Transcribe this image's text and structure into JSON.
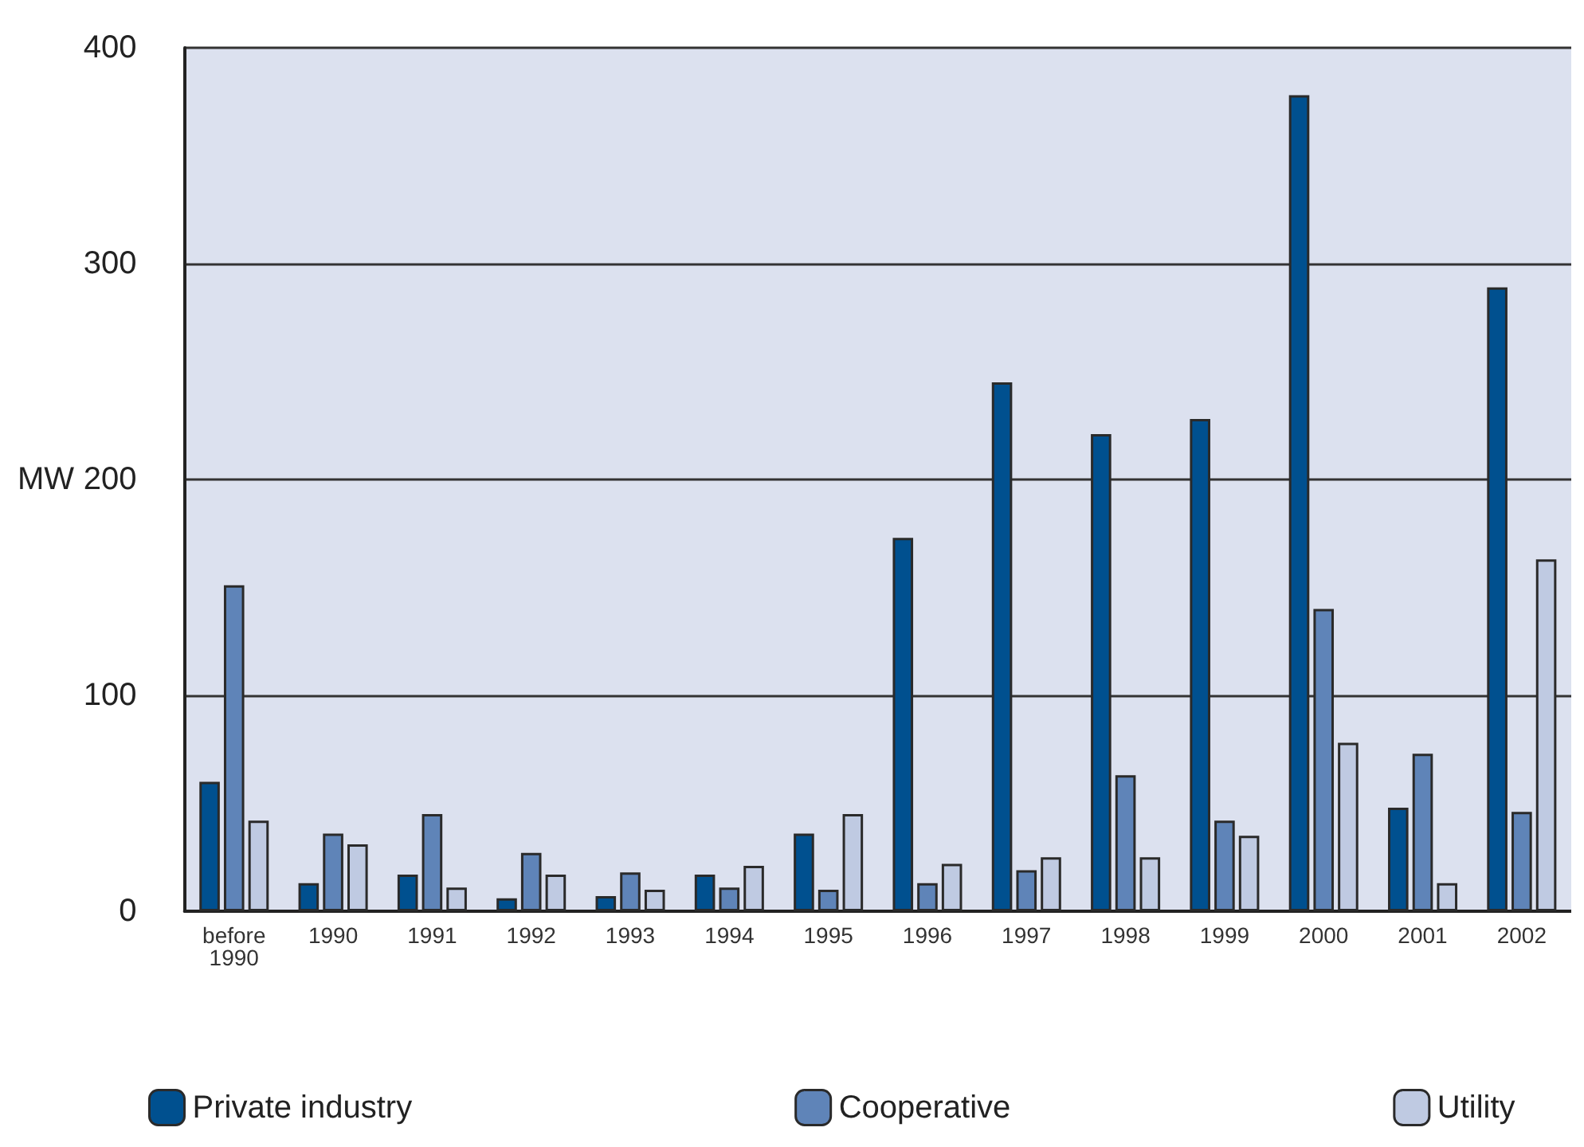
{
  "chart_data": {
    "type": "bar",
    "ylabel": "MW",
    "categories": [
      "before 1990",
      "1990",
      "1991",
      "1992",
      "1993",
      "1994",
      "1995",
      "1996",
      "1997",
      "1998",
      "1999",
      "2000",
      "2001",
      "2002"
    ],
    "series": [
      {
        "name": "Private industry",
        "color": "#00508f",
        "values": [
          60,
          13,
          17,
          6,
          7,
          17,
          36,
          173,
          245,
          221,
          228,
          378,
          48,
          289
        ]
      },
      {
        "name": "Cooperative",
        "color": "#5f84b8",
        "values": [
          151,
          36,
          45,
          27,
          18,
          11,
          10,
          13,
          19,
          63,
          42,
          140,
          73,
          46
        ]
      },
      {
        "name": "Utility",
        "color": "#bfcae2",
        "values": [
          42,
          31,
          11,
          17,
          10,
          21,
          45,
          22,
          25,
          25,
          35,
          78,
          13,
          163
        ]
      }
    ],
    "ylim": [
      0,
      400
    ],
    "yticks": [
      0,
      100,
      200,
      300,
      400
    ],
    "grid": "y",
    "legend": "bottom"
  }
}
